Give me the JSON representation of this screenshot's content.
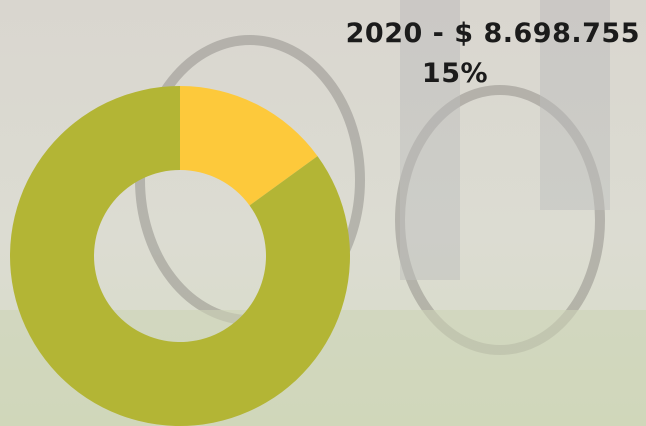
{
  "chart_data": {
    "type": "donut",
    "title": "2020 - $ 8.698.755",
    "values": [
      15,
      85
    ],
    "value_labels": [
      "15%",
      null
    ],
    "colors": [
      "#fdc93b",
      "#b3b535"
    ]
  }
}
